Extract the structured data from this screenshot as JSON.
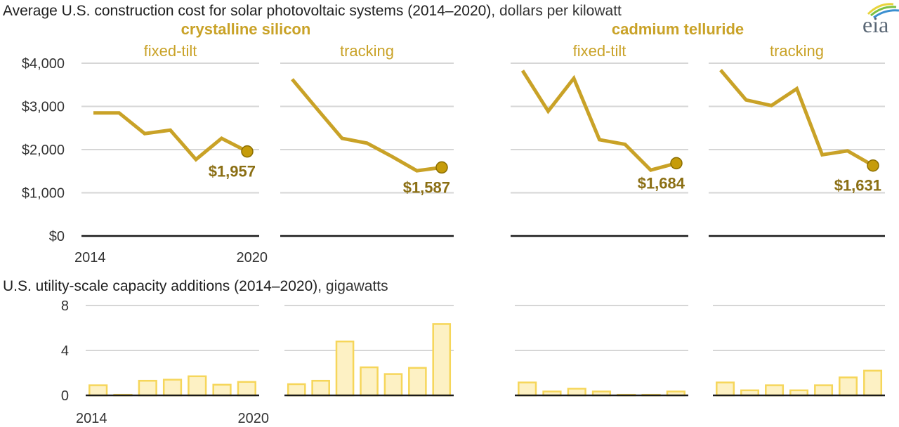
{
  "chart_data": [
    {
      "type": "line",
      "title": "Average U.S. construction cost for solar photovoltaic systems (2014–2020), dollars per kilowatt",
      "title_bold": "Average U.S. construction cost for solar photovoltaic systems (2014–2020)",
      "title_unit": ", dollars per kilowatt",
      "ylabel": "dollars per kilowatt",
      "ylim": [
        0,
        4000
      ],
      "yticks": [
        0,
        1000,
        2000,
        3000,
        4000
      ],
      "ytick_labels": [
        "$0",
        "$1,000",
        "$2,000",
        "$3,000",
        "$4,000"
      ],
      "x": [
        2014,
        2015,
        2016,
        2017,
        2018,
        2019,
        2020
      ],
      "xtick_labels": [
        "2014",
        "2020"
      ],
      "grid": true,
      "groups": [
        {
          "label": "crystalline silicon",
          "panels": [
            0,
            1
          ]
        },
        {
          "label": "cadmium telluride",
          "panels": [
            2,
            3
          ]
        }
      ],
      "panels": [
        {
          "name": "crystalline silicon fixed-tilt",
          "label": "fixed-tilt",
          "values": [
            2850,
            2850,
            2370,
            2450,
            1770,
            2260,
            1957
          ],
          "end_label": "$1,957"
        },
        {
          "name": "crystalline silicon tracking",
          "label": "tracking",
          "values": [
            3630,
            2940,
            2260,
            2150,
            1840,
            1510,
            1587
          ],
          "end_label": "$1,587"
        },
        {
          "name": "cadmium telluride fixed-tilt",
          "label": "fixed-tilt",
          "values": [
            3830,
            2890,
            3650,
            2230,
            2120,
            1525,
            1684
          ],
          "end_label": "$1,684"
        },
        {
          "name": "cadmium telluride tracking",
          "label": "tracking",
          "values": [
            3840,
            3150,
            3020,
            3410,
            1880,
            1970,
            1631
          ],
          "end_label": "$1,631"
        }
      ]
    },
    {
      "type": "bar",
      "title": "U.S. utility-scale capacity additions (2014–2020), gigawatts",
      "title_bold": "U.S. utility-scale capacity additions (2014–2020)",
      "title_unit": ", gigawatts",
      "ylabel": "gigawatts",
      "ylim": [
        0,
        8
      ],
      "yticks": [
        0,
        4,
        8
      ],
      "ytick_labels": [
        "0",
        "4",
        "8"
      ],
      "categories": [
        2014,
        2015,
        2016,
        2017,
        2018,
        2019,
        2020
      ],
      "xtick_labels": [
        "2014",
        "2020"
      ],
      "grid": true,
      "series": [
        {
          "name": "crystalline silicon fixed-tilt",
          "values": [
            0.9,
            0.05,
            1.3,
            1.4,
            1.7,
            0.95,
            1.2
          ]
        },
        {
          "name": "crystalline silicon tracking",
          "values": [
            1.0,
            1.3,
            4.8,
            2.5,
            1.9,
            2.45,
            6.35
          ]
        },
        {
          "name": "cadmium telluride fixed-tilt",
          "values": [
            1.15,
            0.35,
            0.6,
            0.35,
            0.05,
            0.05,
            0.35
          ]
        },
        {
          "name": "cadmium telluride tracking",
          "values": [
            1.15,
            0.45,
            0.9,
            0.45,
            0.9,
            1.6,
            2.2
          ]
        }
      ]
    }
  ],
  "logo": {
    "text": "eia",
    "name": "EIA"
  },
  "colors": {
    "line": "#c9a227",
    "dot": "#c69c0a",
    "end_label": "#8b6f14",
    "bar_fill": "#fdf1c4",
    "bar_stroke": "#f6d65a",
    "heading": "#c9a227"
  }
}
